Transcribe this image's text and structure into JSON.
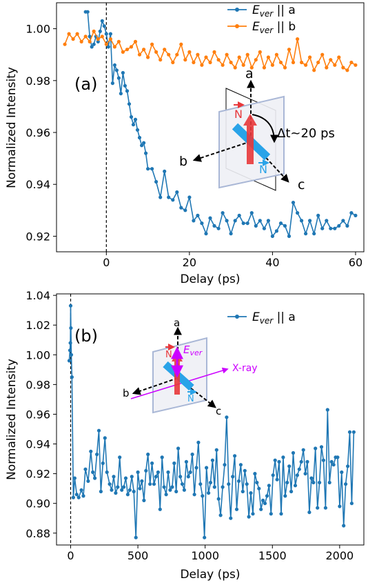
{
  "chart_data": [
    {
      "type": "line",
      "panel_label": "(a)",
      "xlabel": "Delay (ps)",
      "ylabel": "Normalized Intensity",
      "xlim": [
        -12,
        62
      ],
      "ylim": [
        0.914,
        1.01
      ],
      "xticks": [
        0,
        20,
        40,
        60
      ],
      "yticks": [
        0.92,
        0.94,
        0.96,
        0.98,
        1.0
      ],
      "ytick_labels": [
        "0.92",
        "0.94",
        "0.96",
        "0.98",
        "1.00"
      ],
      "zero_line_x": 0,
      "legend_position": "upper-right",
      "series": [
        {
          "name": "E_ver || a",
          "legend_main": "E",
          "legend_sub": "ver",
          "legend_tail": " || a",
          "color": "#1f77b4",
          "x": [
            -5,
            -4.5,
            -4,
            -3.5,
            -3,
            -2.5,
            -2,
            -1.5,
            -1,
            -0.5,
            0,
            0.5,
            1,
            1.5,
            2,
            2.5,
            3,
            3.5,
            4,
            4.5,
            5,
            5.5,
            6,
            6.5,
            7,
            7.5,
            8,
            8.5,
            9,
            9.5,
            10,
            11,
            12,
            13,
            14,
            15,
            16,
            17,
            18,
            19,
            20,
            21,
            22,
            23,
            24,
            25,
            26,
            27,
            28,
            29,
            30,
            31,
            32,
            33,
            34,
            35,
            36,
            37,
            38,
            39,
            40,
            41,
            42,
            43,
            44,
            45,
            46,
            47,
            48,
            49,
            50,
            51,
            52,
            53,
            54,
            55,
            56,
            57,
            58,
            59,
            60
          ],
          "values": [
            1.0065,
            1.0065,
            0.997,
            0.993,
            0.994,
            0.997,
            0.995,
            0.999,
            1.003,
            1.001,
            0.998,
            0.993,
            0.998,
            0.979,
            0.986,
            0.984,
            0.981,
            0.975,
            0.983,
            0.978,
            0.976,
            0.971,
            0.966,
            0.963,
            0.965,
            0.961,
            0.958,
            0.955,
            0.956,
            0.952,
            0.946,
            0.946,
            0.941,
            0.935,
            0.945,
            0.935,
            0.934,
            0.937,
            0.931,
            0.93,
            0.935,
            0.926,
            0.928,
            0.925,
            0.921,
            0.927,
            0.924,
            0.923,
            0.929,
            0.926,
            0.921,
            0.926,
            0.928,
            0.925,
            0.925,
            0.929,
            0.924,
            0.926,
            0.923,
            0.926,
            0.92,
            0.922,
            0.925,
            0.924,
            0.92,
            0.933,
            0.929,
            0.926,
            0.921,
            0.926,
            0.921,
            0.928,
            0.923,
            0.926,
            0.923,
            0.923,
            0.924,
            0.926,
            0.924,
            0.929,
            0.928
          ]
        },
        {
          "name": "E_ver || b",
          "legend_main": "E",
          "legend_sub": "ver",
          "legend_tail": " || b",
          "color": "#ff7f0e",
          "x": [
            -10,
            -9,
            -8,
            -7,
            -6,
            -5,
            -4,
            -3,
            -2,
            -1,
            0,
            1,
            2,
            3,
            4,
            5,
            6,
            7,
            8,
            9,
            10,
            11,
            12,
            13,
            14,
            15,
            16,
            17,
            18,
            19,
            20,
            21,
            22,
            23,
            24,
            25,
            26,
            27,
            28,
            29,
            30,
            31,
            32,
            33,
            34,
            35,
            36,
            37,
            38,
            39,
            40,
            41,
            42,
            43,
            44,
            45,
            46,
            47,
            48,
            49,
            50,
            51,
            52,
            53,
            54,
            55,
            56,
            57,
            58,
            59,
            60
          ],
          "values": [
            0.994,
            0.998,
            0.996,
            0.998,
            0.995,
            0.997,
            0.995,
            0.999,
            0.996,
            0.997,
            0.994,
            0.996,
            0.993,
            0.995,
            0.991,
            0.992,
            0.993,
            0.995,
            0.99,
            0.992,
            0.989,
            0.994,
            0.991,
            0.988,
            0.992,
            0.99,
            0.987,
            0.99,
            0.994,
            0.988,
            0.991,
            0.987,
            0.99,
            0.986,
            0.989,
            0.987,
            0.991,
            0.988,
            0.986,
            0.99,
            0.987,
            0.985,
            0.989,
            0.986,
            0.99,
            0.985,
            0.988,
            0.991,
            0.985,
            0.989,
            0.986,
            0.99,
            0.987,
            0.985,
            0.992,
            0.987,
            0.996,
            0.987,
            0.986,
            0.989,
            0.984,
            0.987,
            0.99,
            0.985,
            0.988,
            0.986,
            0.989,
            0.985,
            0.984,
            0.987,
            0.986
          ]
        }
      ],
      "inset": {
        "axis_a": "a",
        "axis_b": "b",
        "axis_c": "c",
        "n_label": "N",
        "delay_text": "Δt~20 ps",
        "red": "#e8373a",
        "blue": "#29a3e8"
      }
    },
    {
      "type": "line",
      "panel_label": "(b)",
      "xlabel": "Delay (ps)",
      "ylabel": "Normalized Intensity",
      "xlim": [
        -105,
        2180
      ],
      "ylim": [
        0.872,
        1.041
      ],
      "xticks": [
        0,
        500,
        1000,
        1500,
        2000
      ],
      "yticks": [
        0.88,
        0.9,
        0.92,
        0.94,
        0.96,
        0.98,
        1.0,
        1.02,
        1.04
      ],
      "ytick_labels": [
        "0.88",
        "0.90",
        "0.92",
        "0.94",
        "0.96",
        "0.98",
        "1.00",
        "1.02",
        "1.04"
      ],
      "zero_line_x": 0,
      "legend_position": "upper-right",
      "series": [
        {
          "name": "E_ver || a",
          "legend_main": "E",
          "legend_sub": "ver",
          "legend_tail": " || a",
          "color": "#1f77b4",
          "x": [
            -10,
            -5,
            -2,
            0,
            2,
            5,
            10,
            20,
            30,
            45,
            60,
            80,
            95,
            110,
            130,
            150,
            165,
            180,
            195,
            210,
            225,
            240,
            255,
            270,
            290,
            305,
            320,
            335,
            350,
            365,
            380,
            395,
            410,
            425,
            440,
            455,
            470,
            485,
            500,
            515,
            530,
            545,
            560,
            575,
            590,
            605,
            620,
            635,
            650,
            665,
            680,
            695,
            710,
            725,
            740,
            755,
            770,
            785,
            800,
            815,
            830,
            845,
            860,
            875,
            890,
            905,
            920,
            935,
            950,
            965,
            980,
            995,
            1010,
            1025,
            1040,
            1055,
            1070,
            1085,
            1100,
            1115,
            1130,
            1145,
            1160,
            1175,
            1190,
            1205,
            1220,
            1235,
            1250,
            1265,
            1280,
            1295,
            1310,
            1325,
            1340,
            1355,
            1370,
            1385,
            1400,
            1415,
            1430,
            1445,
            1460,
            1475,
            1490,
            1505,
            1520,
            1535,
            1550,
            1565,
            1580,
            1595,
            1610,
            1625,
            1640,
            1655,
            1670,
            1685,
            1700,
            1715,
            1730,
            1745,
            1760,
            1775,
            1790,
            1805,
            1820,
            1835,
            1850,
            1865,
            1880,
            1895,
            1910,
            1925,
            1940,
            1955,
            1970,
            1985,
            2000,
            2015,
            2030,
            2045,
            2060,
            2075,
            2090,
            2105
          ],
          "values": [
            0.996,
            1.003,
            1.008,
            1.033,
            1.018,
            1.0,
            0.985,
            0.904,
            0.917,
            0.906,
            0.904,
            0.909,
            0.905,
            0.923,
            0.915,
            0.935,
            0.921,
            0.917,
            0.933,
            0.949,
            0.908,
            0.927,
            0.944,
            0.921,
            0.913,
            0.909,
            0.918,
            0.907,
            0.911,
            0.931,
            0.909,
            0.911,
            0.917,
            0.906,
            0.909,
            0.918,
            0.908,
            0.877,
            0.921,
            0.91,
            0.915,
            0.902,
            0.922,
            0.933,
            0.913,
            0.927,
            0.913,
            0.918,
            0.921,
            0.896,
            0.931,
            0.911,
            0.906,
            0.921,
            0.909,
            0.911,
            0.927,
            0.908,
            0.937,
            0.918,
            0.913,
            0.909,
            0.928,
            0.918,
            0.921,
            0.933,
            0.906,
            0.924,
            0.941,
            0.913,
            0.905,
            0.877,
            0.924,
            0.907,
            0.914,
            0.929,
            0.911,
            0.936,
            0.903,
            0.892,
            0.911,
            0.926,
            0.958,
            0.913,
            0.89,
            0.918,
            0.932,
            0.896,
            0.915,
            0.926,
            0.908,
            0.922,
            0.913,
            0.891,
            0.907,
            0.893,
            0.92,
            0.914,
            0.91,
            0.896,
            0.902,
            0.9,
            0.905,
            0.912,
            0.893,
            0.919,
            0.929,
            0.916,
            0.928,
            0.893,
            0.931,
            0.905,
            0.914,
            0.925,
            0.908,
            0.934,
            0.912,
            0.919,
            0.923,
            0.928,
            0.936,
            0.92,
            0.928,
            0.894,
            0.917,
            0.914,
            0.937,
            0.897,
            0.914,
            0.938,
            0.929,
            0.897,
            0.963,
            0.914,
            0.928,
            0.926,
            0.931,
            0.931,
            0.898,
            0.921,
            0.885,
            0.913,
            0.925,
            0.948,
            0.9,
            0.948
          ]
        }
      ],
      "inset": {
        "axis_a": "a",
        "axis_b": "b",
        "axis_c": "c",
        "n_label": "N",
        "e_main": "E",
        "e_sub": "ver",
        "xray_text": "X-ray",
        "red": "#e8373a",
        "blue": "#29a3e8",
        "magenta": "#cc00ff"
      }
    }
  ]
}
